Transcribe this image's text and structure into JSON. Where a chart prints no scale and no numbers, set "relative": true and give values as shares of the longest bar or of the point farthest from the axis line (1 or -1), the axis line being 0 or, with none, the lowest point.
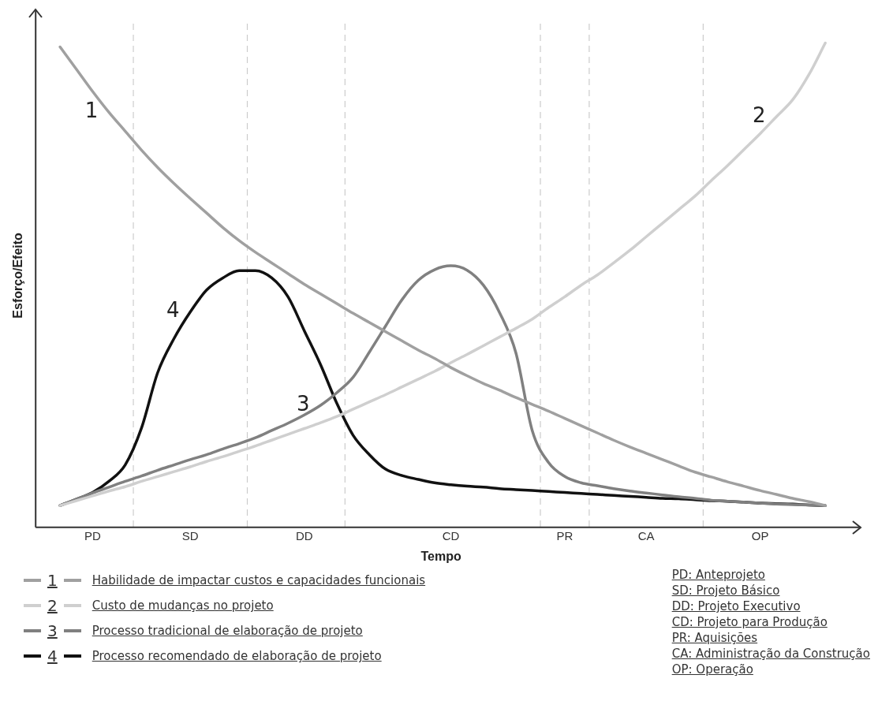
{
  "chart_data": {
    "type": "line",
    "relative": true,
    "xlabel": "Tempo",
    "ylabel": "Esforço/Efeito",
    "categories": [
      null,
      null,
      "PD",
      null,
      null,
      null,
      null,
      null,
      "SD",
      null,
      null,
      null,
      null,
      null,
      null,
      "DD",
      null,
      null,
      null,
      null,
      null,
      null,
      null,
      null,
      "CD",
      null,
      null,
      null,
      null,
      null,
      null,
      "PR",
      null,
      null,
      null,
      null,
      "CA",
      null,
      null,
      null,
      null,
      null,
      null,
      "OP",
      null,
      null,
      null,
      null
    ],
    "grid": false,
    "legend": "bottom",
    "marker": "none",
    "line_style": "solid",
    "series": [
      {
        "name": "Habilidade de impactar custos e capacidades funcionais",
        "color": "#a0a0a0",
        "values": [
          0.992,
          0.946,
          0.9,
          0.857,
          0.818,
          0.779,
          0.743,
          0.71,
          0.679,
          0.649,
          0.619,
          0.592,
          0.568,
          0.546,
          0.524,
          0.502,
          0.482,
          0.462,
          0.442,
          0.423,
          0.404,
          0.385,
          0.366,
          0.349,
          0.33,
          0.313,
          0.297,
          0.283,
          0.268,
          0.254,
          0.24,
          0.225,
          0.21,
          0.195,
          0.18,
          0.166,
          0.153,
          0.14,
          0.127,
          0.114,
          0.104,
          0.094,
          0.085,
          0.076,
          0.068,
          0.06,
          0.053,
          0.045
        ]
      },
      {
        "name": "Custo de mudanças no projeto",
        "color": "#cfcfcf",
        "values": [
          0.045,
          0.055,
          0.065,
          0.075,
          0.084,
          0.095,
          0.105,
          0.115,
          0.125,
          0.136,
          0.146,
          0.157,
          0.168,
          0.18,
          0.192,
          0.204,
          0.216,
          0.229,
          0.244,
          0.259,
          0.274,
          0.29,
          0.306,
          0.322,
          0.34,
          0.357,
          0.375,
          0.393,
          0.411,
          0.43,
          0.454,
          0.476,
          0.5,
          0.521,
          0.546,
          0.572,
          0.6,
          0.628,
          0.656,
          0.684,
          0.716,
          0.747,
          0.78,
          0.813,
          0.848,
          0.883,
          0.935,
          1.0
        ]
      },
      {
        "name": "Processo tradicional de elaboração de projeto",
        "color": "#808080",
        "values": [
          0.045,
          0.058,
          0.071,
          0.083,
          0.095,
          0.106,
          0.118,
          0.129,
          0.14,
          0.15,
          0.162,
          0.173,
          0.185,
          0.2,
          0.215,
          0.232,
          0.252,
          0.278,
          0.31,
          0.362,
          0.416,
          0.47,
          0.51,
          0.532,
          0.54,
          0.531,
          0.5,
          0.443,
          0.36,
          0.2,
          0.134,
          0.105,
          0.092,
          0.086,
          0.08,
          0.075,
          0.071,
          0.067,
          0.063,
          0.06,
          0.056,
          0.054,
          0.052,
          0.05,
          0.048,
          0.047,
          0.046,
          0.045
        ]
      },
      {
        "name": "Processo recomendado de elaboração de projeto",
        "color": "#111111",
        "values": [
          0.045,
          0.058,
          0.072,
          0.095,
          0.129,
          0.205,
          0.32,
          0.39,
          0.445,
          0.49,
          0.515,
          0.53,
          0.53,
          0.515,
          0.476,
          0.406,
          0.336,
          0.256,
          0.19,
          0.15,
          0.12,
          0.107,
          0.099,
          0.092,
          0.088,
          0.085,
          0.083,
          0.08,
          0.078,
          0.076,
          0.074,
          0.072,
          0.07,
          0.068,
          0.066,
          0.064,
          0.062,
          0.06,
          0.059,
          0.057,
          0.055,
          0.054,
          0.052,
          0.05,
          0.049,
          0.048,
          0.046,
          0.045
        ]
      }
    ],
    "annotations": [
      "1",
      "2",
      "3",
      "4",
      "PD: Anteprojeto",
      "SD: Projeto Básico",
      "DD: Projeto Executivo",
      "CD: Projeto para Produção",
      "PR: Aquisições",
      "CA: Administração da Construção",
      "OP: Operação"
    ]
  }
}
